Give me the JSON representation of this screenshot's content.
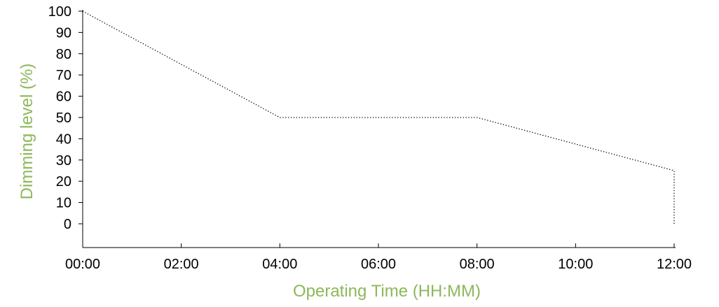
{
  "chart_data": {
    "type": "line",
    "xlabel": "Operating Time (HH:MM)",
    "ylabel": "Dimming level (%)",
    "x_ticks": [
      "00:00",
      "02:00",
      "04:00",
      "06:00",
      "08:00",
      "10:00",
      "12:00"
    ],
    "y_ticks": [
      "0",
      "10",
      "20",
      "30",
      "40",
      "50",
      "60",
      "70",
      "80",
      "90",
      "100"
    ],
    "xlim": [
      "00:00",
      "12:00"
    ],
    "ylim": [
      0,
      100
    ],
    "grid": false,
    "series": [
      {
        "line_style": "dotted",
        "color": "#000000",
        "x": [
          "00:00",
          "04:00",
          "08:00",
          "12:00",
          "12:00"
        ],
        "y": [
          100,
          50,
          50,
          25,
          0
        ]
      }
    ]
  },
  "colors": {
    "axis_title": "#8DB85A",
    "axis_line": "#000000",
    "series": "#000000"
  }
}
